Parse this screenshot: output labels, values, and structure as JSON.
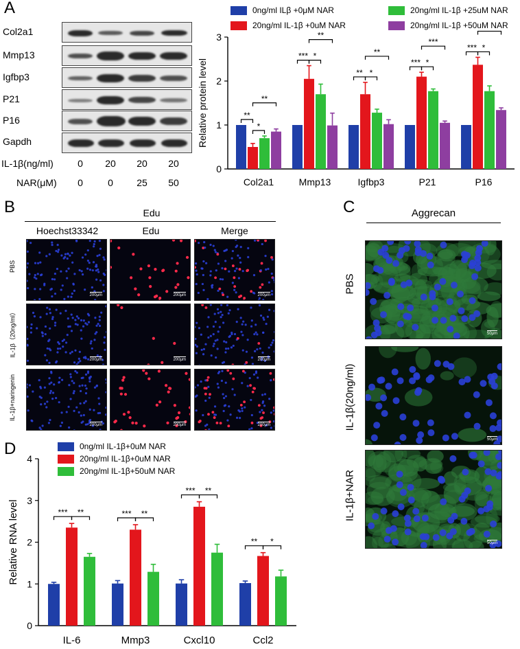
{
  "panelA": {
    "label": "A",
    "blots": [
      "Col2a1",
      "Mmp13",
      "Igfbp3",
      "P21",
      "P16",
      "Gapdh"
    ],
    "conditions": [
      {
        "label": "IL-1β(ng/ml)",
        "values": [
          "0",
          "20",
          "20",
          "20"
        ]
      },
      {
        "label": "NAR(μM)",
        "values": [
          "0",
          "0",
          "25",
          "50"
        ]
      }
    ]
  },
  "panelB": {
    "label": "B",
    "title": "Edu",
    "columns": [
      "Hoechst33342",
      "Edu",
      "Merge"
    ],
    "rows": [
      "PBS",
      "IL-1β（20ng/ml）",
      "IL-1β+naringenin"
    ],
    "scale": "200μm"
  },
  "panelC": {
    "label": "C",
    "title": "Aggrecan",
    "rows": [
      "PBS",
      "IL-1β(20ng/ml)",
      "IL-1β+NAR"
    ],
    "scale": "50μm"
  },
  "panelD": {
    "label": "D"
  },
  "chart_data": [
    {
      "type": "bar",
      "ylabel": "Relative protein level",
      "ylim": [
        0,
        3
      ],
      "yticks": [
        "0",
        "1",
        "2",
        "3"
      ],
      "categories": [
        "Col2a1",
        "Mmp13",
        "Igfbp3",
        "P21",
        "P16"
      ],
      "series": [
        {
          "name": "0ng/ml ILβ +0μM NAR",
          "color": "#1f3fa8",
          "values": [
            1.0,
            1.0,
            1.0,
            1.0,
            1.0
          ],
          "errors": [
            0,
            0,
            0,
            0,
            0
          ]
        },
        {
          "name": "20ng/ml IL-1β +0uM NAR",
          "color": "#e3161c",
          "values": [
            0.5,
            2.05,
            1.7,
            2.1,
            2.37
          ],
          "errors": [
            0.08,
            0.3,
            0.27,
            0.1,
            0.17
          ]
        },
        {
          "name": "20ng/ml IL-1β +25uM NAR",
          "color": "#2fbd3a",
          "values": [
            0.7,
            1.7,
            1.28,
            1.77,
            1.77
          ],
          "errors": [
            0.05,
            0.23,
            0.08,
            0.05,
            0.12
          ]
        },
        {
          "name": "20ng/ml IL-1β +50uM NAR",
          "color": "#8e3ea0",
          "values": [
            0.85,
            0.99,
            1.02,
            1.05,
            1.34
          ],
          "errors": [
            0.06,
            0.28,
            0.1,
            0.04,
            0.05
          ]
        }
      ],
      "significance": [
        [
          {
            "a": 0,
            "b": 1,
            "t": "**"
          },
          {
            "a": 1,
            "b": 2,
            "t": "*"
          },
          {
            "a": 1,
            "b": 3,
            "t": "**"
          }
        ],
        [
          {
            "a": 0,
            "b": 1,
            "t": "***"
          },
          {
            "a": 1,
            "b": 2,
            "t": "*"
          },
          {
            "a": 1,
            "b": 3,
            "t": "**"
          }
        ],
        [
          {
            "a": 0,
            "b": 1,
            "t": "**"
          },
          {
            "a": 1,
            "b": 2,
            "t": "*"
          },
          {
            "a": 1,
            "b": 3,
            "t": "**"
          }
        ],
        [
          {
            "a": 0,
            "b": 1,
            "t": "***"
          },
          {
            "a": 1,
            "b": 2,
            "t": "*"
          },
          {
            "a": 1,
            "b": 3,
            "t": "***"
          }
        ],
        [
          {
            "a": 0,
            "b": 1,
            "t": "***"
          },
          {
            "a": 1,
            "b": 2,
            "t": "*"
          },
          {
            "a": 1,
            "b": 3,
            "t": "**"
          }
        ]
      ],
      "legend": "top"
    },
    {
      "type": "bar",
      "ylabel": "Relative RNA level",
      "ylim": [
        0,
        4
      ],
      "yticks": [
        "0",
        "1",
        "2",
        "3",
        "4"
      ],
      "categories": [
        "IL-6",
        "Mmp3",
        "Cxcl10",
        "Ccl2"
      ],
      "series": [
        {
          "name": "0ng/ml IL-1β+0uM NAR",
          "color": "#1f3fa8",
          "values": [
            1.0,
            1.01,
            1.01,
            1.02
          ],
          "errors": [
            0.04,
            0.07,
            0.09,
            0.05
          ]
        },
        {
          "name": "20ng/ml IL-1β+0uM NAR",
          "color": "#e3161c",
          "values": [
            2.35,
            2.3,
            2.85,
            1.67
          ],
          "errors": [
            0.1,
            0.12,
            0.12,
            0.08
          ]
        },
        {
          "name": "20ng/ml IL-1β+50uM NAR",
          "color": "#2fbd3a",
          "values": [
            1.65,
            1.29,
            1.75,
            1.18
          ],
          "errors": [
            0.08,
            0.18,
            0.2,
            0.15
          ]
        }
      ],
      "significance": [
        [
          {
            "a": 0,
            "b": 1,
            "t": "***"
          },
          {
            "a": 1,
            "b": 2,
            "t": "**"
          }
        ],
        [
          {
            "a": 0,
            "b": 1,
            "t": "***"
          },
          {
            "a": 1,
            "b": 2,
            "t": "**"
          }
        ],
        [
          {
            "a": 0,
            "b": 1,
            "t": "***"
          },
          {
            "a": 1,
            "b": 2,
            "t": "**"
          }
        ],
        [
          {
            "a": 0,
            "b": 1,
            "t": "**"
          },
          {
            "a": 1,
            "b": 2,
            "t": "*"
          }
        ]
      ],
      "legend": "top-left"
    }
  ]
}
